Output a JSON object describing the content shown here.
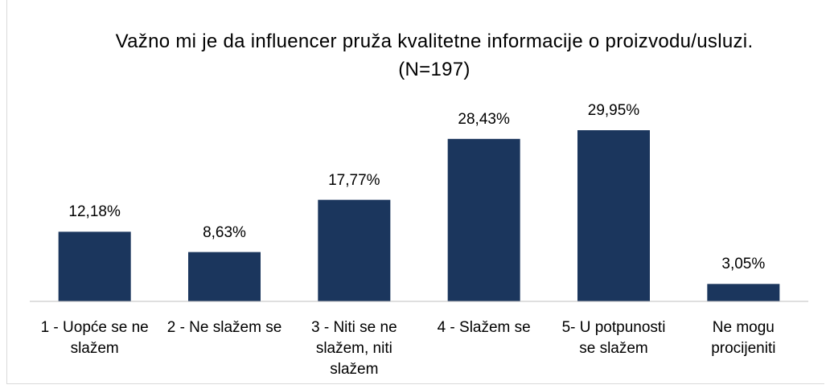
{
  "chart_data": {
    "type": "bar",
    "title": "Važno mi je da influencer pruža kvalitetne informacije o proizvodu/usluzi. (N=197)",
    "categories": [
      "1 - Uopće se ne slažem",
      "2 - Ne slažem se",
      "3 - Niti se ne slažem, niti slažem",
      "4 - Slažem se",
      "5- U potpunosti se slažem",
      "Ne mogu procijeniti"
    ],
    "values": [
      12.18,
      8.63,
      17.77,
      28.43,
      29.95,
      3.05
    ],
    "value_labels": [
      "12,18%",
      "8,63%",
      "17,77%",
      "28,43%",
      "29,95%",
      "3,05%"
    ],
    "color": "#1b365d"
  }
}
